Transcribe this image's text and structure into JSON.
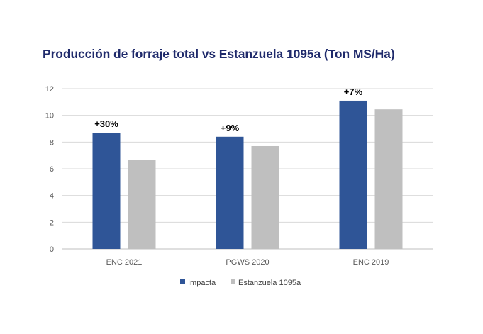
{
  "chart_data": {
    "type": "bar",
    "title": "Producción de forraje total vs Estanzuela 1095a (Ton MS/Ha)",
    "categories": [
      "ENC 2021",
      "PGWS 2020",
      "ENC 2019"
    ],
    "series": [
      {
        "name": "Impacta",
        "values": [
          8.7,
          8.4,
          11.1
        ],
        "color": "#2f5597"
      },
      {
        "name": "Estanzuela 1095a",
        "values": [
          6.65,
          7.7,
          10.45
        ],
        "color": "#bfbfbf"
      }
    ],
    "annotations": [
      "+30%",
      "+9%",
      "+7%"
    ],
    "ylim": [
      0,
      12
    ],
    "yticks": [
      0,
      2,
      4,
      6,
      8,
      10,
      12
    ],
    "grid": true,
    "legend": "bottom-center",
    "xlabel": "",
    "ylabel": ""
  }
}
